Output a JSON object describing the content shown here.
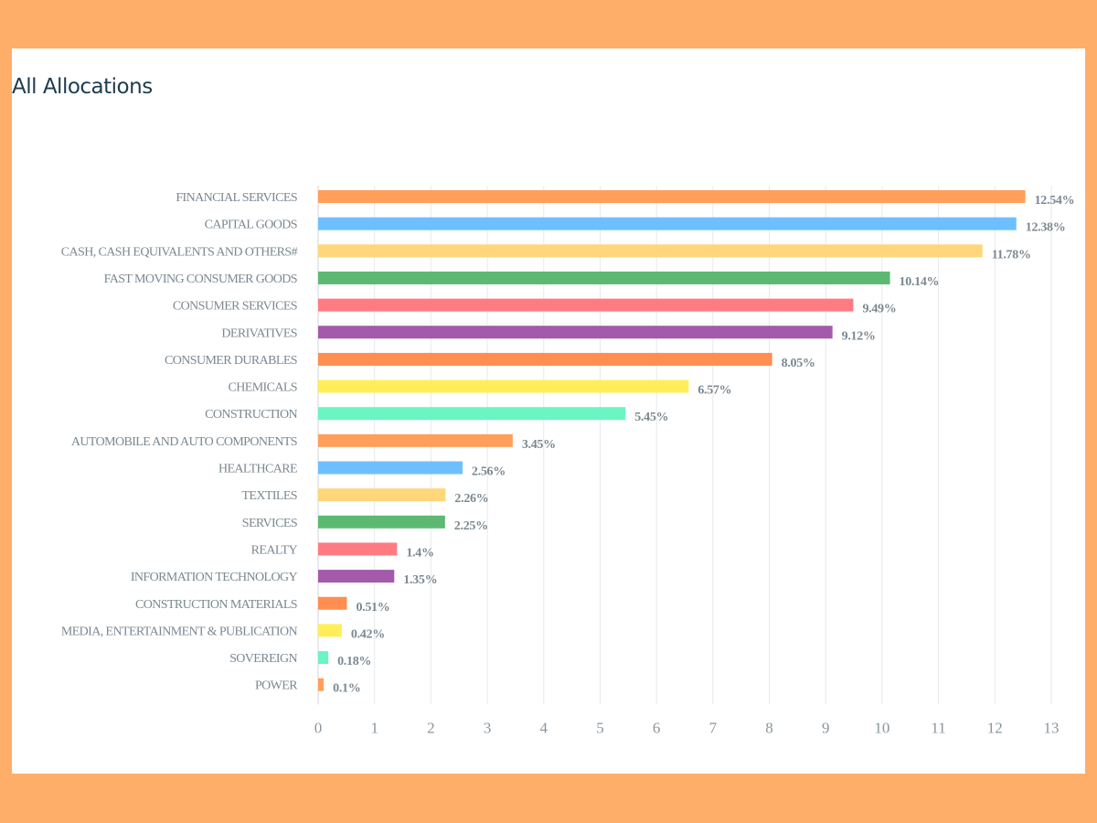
{
  "page": {
    "title": "All Allocations",
    "background_color": "#FFAE6A",
    "panel_color": "#ffffff"
  },
  "chart_data": {
    "type": "bar",
    "orientation": "horizontal",
    "title": "All Allocations",
    "xlabel": "",
    "ylabel": "",
    "xlim": [
      0,
      13
    ],
    "x_ticks": [
      0,
      1,
      2,
      3,
      4,
      5,
      6,
      7,
      8,
      9,
      10,
      11,
      12,
      13
    ],
    "grid": "vertical",
    "categories": [
      "FINANCIAL SERVICES",
      "CAPITAL GOODS",
      "CASH, CASH EQUIVALENTS AND OTHERS#",
      "FAST MOVING CONSUMER GOODS",
      "CONSUMER SERVICES",
      "DERIVATIVES",
      "CONSUMER DURABLES",
      "CHEMICALS",
      "CONSTRUCTION",
      "AUTOMOBILE AND AUTO COMPONENTS",
      "HEALTHCARE",
      "TEXTILES",
      "SERVICES",
      "REALTY",
      "INFORMATION TECHNOLOGY",
      "CONSTRUCTION MATERIALS",
      "MEDIA, ENTERTAINMENT & PUBLICATION",
      "SOVEREIGN",
      "POWER"
    ],
    "values": [
      12.54,
      12.38,
      11.78,
      10.14,
      9.49,
      9.12,
      8.05,
      6.57,
      5.45,
      3.45,
      2.56,
      2.26,
      2.25,
      1.4,
      1.35,
      0.51,
      0.42,
      0.18,
      0.1
    ],
    "value_labels": [
      "12.54%",
      "12.38%",
      "11.78%",
      "10.14%",
      "9.49%",
      "9.12%",
      "8.05%",
      "6.57%",
      "5.45%",
      "3.45%",
      "2.56%",
      "2.26%",
      "2.25%",
      "1.4%",
      "1.35%",
      "0.51%",
      "0.42%",
      "0.18%",
      "0.1%"
    ],
    "colors": [
      "#FF9F5A",
      "#6EBFFF",
      "#FFD67A",
      "#5DB872",
      "#FF7B82",
      "#A35AAA",
      "#FF8E50",
      "#FFEE5A",
      "#6AF5C2",
      "#FF9F5A",
      "#6EBFFF",
      "#FFD67A",
      "#5DB872",
      "#FF7B82",
      "#A35AAA",
      "#FF8E50",
      "#FFEE5A",
      "#6AF5C2",
      "#FF9F5A"
    ]
  }
}
